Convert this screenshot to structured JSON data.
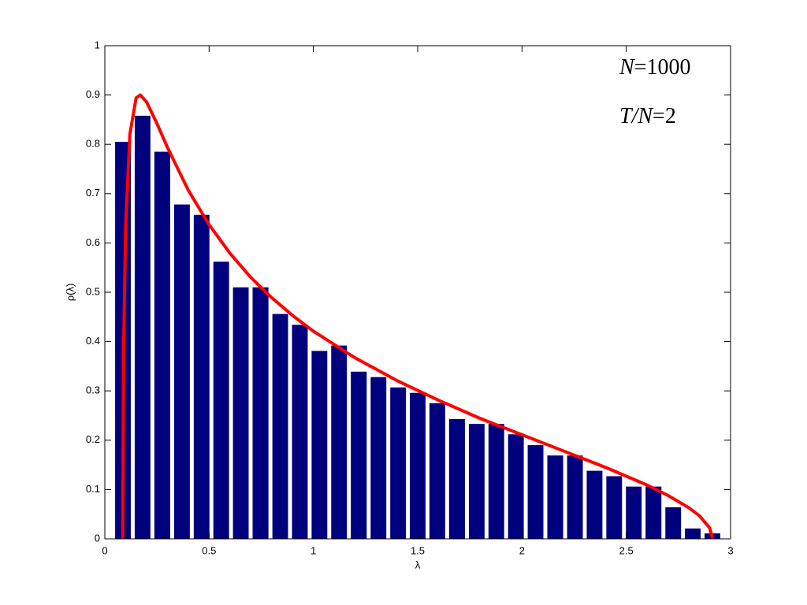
{
  "chart_data": {
    "type": "histogram",
    "bins": [
      0.04,
      0.134,
      0.228,
      0.323,
      0.417,
      0.511,
      0.605,
      0.699,
      0.794,
      0.888,
      0.982,
      1.076,
      1.17,
      1.265,
      1.359,
      1.453,
      1.547,
      1.641,
      1.736,
      1.83,
      1.924,
      2.018,
      2.112,
      2.207,
      2.301,
      2.395,
      2.489,
      2.583,
      2.678,
      2.772,
      2.866,
      2.96
    ],
    "values": [
      0.805,
      0.858,
      0.785,
      0.678,
      0.657,
      0.562,
      0.51,
      0.51,
      0.456,
      0.434,
      0.381,
      0.392,
      0.339,
      0.328,
      0.307,
      0.296,
      0.275,
      0.243,
      0.233,
      0.233,
      0.212,
      0.19,
      0.169,
      0.169,
      0.138,
      0.127,
      0.106,
      0.106,
      0.064,
      0.021,
      0.011
    ],
    "color": "#00007f",
    "curve": {
      "color": "#ff0000",
      "x": [
        0.0858,
        0.09,
        0.1,
        0.12,
        0.15,
        0.17,
        0.2,
        0.25,
        0.3,
        0.4,
        0.5,
        0.6,
        0.7,
        0.8,
        0.9,
        1.0,
        1.2,
        1.4,
        1.6,
        1.8,
        2.0,
        2.2,
        2.4,
        2.6,
        2.7,
        2.8,
        2.85,
        2.9,
        2.914
      ],
      "values": [
        0,
        0.385,
        0.636,
        0.82,
        0.894,
        0.9,
        0.886,
        0.842,
        0.794,
        0.707,
        0.637,
        0.579,
        0.53,
        0.489,
        0.453,
        0.421,
        0.367,
        0.321,
        0.281,
        0.244,
        0.211,
        0.178,
        0.145,
        0.109,
        0.088,
        0.063,
        0.047,
        0.022,
        0
      ]
    },
    "xlabel": "λ",
    "ylabel": "ρ(λ)",
    "xlim": [
      0,
      3
    ],
    "ylim": [
      0,
      1
    ],
    "xticks": [
      0,
      0.5,
      1,
      1.5,
      2,
      2.5,
      3
    ],
    "yticks": [
      0,
      0.1,
      0.2,
      0.3,
      0.4,
      0.5,
      0.6,
      0.7,
      0.8,
      0.9,
      1
    ],
    "annotations": [
      [
        "N",
        "=1000"
      ],
      [
        "T/N",
        "=2"
      ]
    ]
  }
}
